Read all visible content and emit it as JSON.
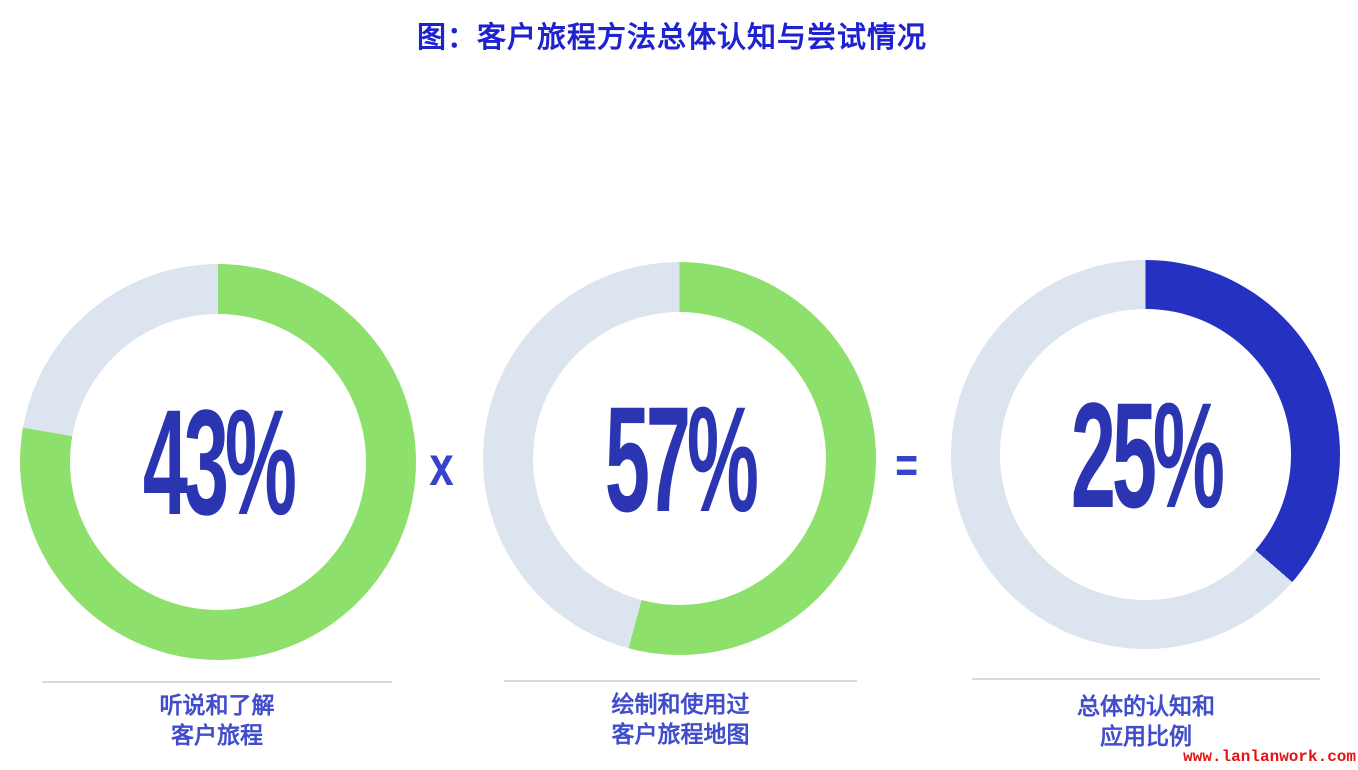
{
  "title": {
    "text": "图：客户旅程方法总体认知与尝试情况",
    "color": "#1e22cf"
  },
  "operators": {
    "multiply": "x",
    "equals": "="
  },
  "watermark": {
    "text": "www.lanlanwork.com",
    "color": "#e41313"
  },
  "colors": {
    "green_arc": "#8de06c",
    "track_gray": "#dbe4ef",
    "blue_arc": "#2531c0",
    "number_blue": "#2b35b2",
    "caption_blue": "#414ecb",
    "divider_gray": "#d7dbe1"
  },
  "chart_data": [
    {
      "type": "pie",
      "variant": "donut",
      "value_pct": 43,
      "center_label": "43%",
      "caption_line1": "听说和了解",
      "caption_line2": "客户旅程",
      "arc_color": "#8de06c",
      "track_color": "#dbe4ef",
      "arc_start": "top",
      "direction": "clockwise",
      "visual_sweep_deg": 280
    },
    {
      "type": "pie",
      "variant": "donut",
      "value_pct": 57,
      "center_label": "57%",
      "caption_line1": "绘制和使用过",
      "caption_line2": "客户旅程地图",
      "arc_color": "#8de06c",
      "track_color": "#dbe4ef",
      "arc_start": "top",
      "direction": "clockwise",
      "visual_sweep_deg": 195
    },
    {
      "type": "pie",
      "variant": "donut",
      "value_pct": 25,
      "center_label": "25%",
      "caption_line1": "总体的认知和",
      "caption_line2": "应用比例",
      "arc_color": "#2531c0",
      "track_color": "#dbe4ef",
      "arc_start": "top",
      "direction": "clockwise",
      "visual_sweep_deg": 131
    }
  ]
}
